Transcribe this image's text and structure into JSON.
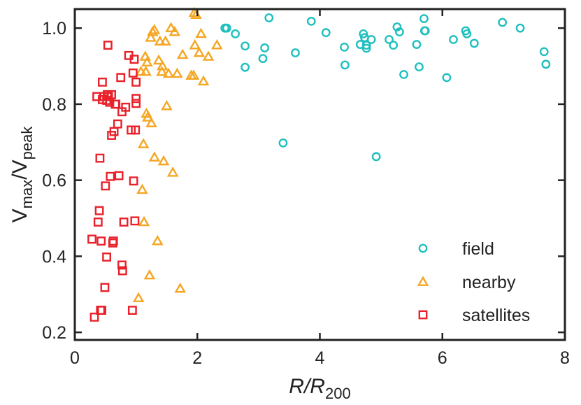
{
  "chart_data": {
    "type": "scatter",
    "title": "",
    "xlabel": {
      "main": "R/R",
      "sub": "200"
    },
    "ylabel": {
      "main1": "V",
      "sub1": "max",
      "slash": "/",
      "main2": "V",
      "sub2": "peak"
    },
    "xlim": [
      0,
      8
    ],
    "ylim": [
      0.18,
      1.05
    ],
    "xticks": [
      0,
      2,
      4,
      6,
      8
    ],
    "xtick_labels": [
      "0",
      "2",
      "4",
      "6",
      "8"
    ],
    "yticks": [
      0.2,
      0.4,
      0.6,
      0.8,
      1.0
    ],
    "ytick_labels": [
      "0.2",
      "0.4",
      "0.6",
      "0.8",
      "1.0"
    ],
    "legend_position": "lower-right",
    "series": [
      {
        "name": "field",
        "marker": "circle",
        "color": "#1fbfbf",
        "x": [
          2.45,
          2.48,
          2.62,
          2.78,
          2.78,
          3.07,
          3.1,
          3.17,
          3.4,
          3.6,
          3.86,
          4.1,
          4.4,
          4.41,
          4.66,
          4.71,
          4.73,
          4.76,
          4.76,
          4.84,
          4.92,
          5.13,
          5.2,
          5.26,
          5.3,
          5.37,
          5.58,
          5.62,
          5.7,
          5.71,
          5.72,
          6.07,
          6.18,
          6.38,
          6.4,
          6.52,
          6.98,
          7.27,
          7.66,
          7.69
        ],
        "y": [
          1.0,
          1.0,
          0.985,
          0.953,
          0.897,
          0.92,
          0.948,
          1.027,
          0.698,
          0.935,
          1.018,
          0.988,
          0.95,
          0.903,
          0.957,
          0.985,
          0.975,
          0.947,
          0.955,
          0.97,
          0.662,
          0.97,
          0.955,
          1.003,
          0.99,
          0.878,
          0.957,
          0.898,
          1.025,
          0.993,
          0.993,
          0.87,
          0.97,
          0.993,
          0.985,
          0.96,
          1.015,
          1.0,
          0.938,
          0.905
        ]
      },
      {
        "name": "nearby",
        "marker": "triangle",
        "color": "#f5a623",
        "x": [
          1.04,
          1.08,
          1.1,
          1.12,
          1.13,
          1.15,
          1.16,
          1.17,
          1.18,
          1.19,
          1.22,
          1.24,
          1.25,
          1.27,
          1.3,
          1.3,
          1.35,
          1.37,
          1.39,
          1.42,
          1.43,
          1.45,
          1.48,
          1.5,
          1.53,
          1.57,
          1.6,
          1.63,
          1.67,
          1.72,
          1.76,
          1.9,
          1.94,
          1.96,
          1.98,
          2.03,
          2.06,
          2.1,
          2.18,
          2.32,
          1.95
        ],
        "y": [
          0.29,
          0.885,
          0.575,
          0.695,
          0.49,
          0.925,
          0.885,
          0.775,
          0.91,
          0.765,
          0.35,
          0.975,
          0.75,
          0.99,
          0.66,
          0.995,
          0.44,
          0.915,
          0.965,
          0.885,
          0.9,
          0.65,
          0.965,
          0.795,
          0.88,
          1.0,
          0.62,
          0.99,
          0.88,
          0.315,
          0.93,
          0.875,
          0.875,
          0.955,
          1.035,
          0.935,
          0.985,
          0.86,
          0.925,
          0.955,
          1.04
        ]
      },
      {
        "name": "satellites",
        "marker": "square",
        "color": "#e8212a",
        "x": [
          0.28,
          0.32,
          0.36,
          0.38,
          0.4,
          0.41,
          0.42,
          0.43,
          0.44,
          0.45,
          0.47,
          0.49,
          0.5,
          0.52,
          0.53,
          0.54,
          0.57,
          0.58,
          0.6,
          0.6,
          0.62,
          0.63,
          0.64,
          0.67,
          0.7,
          0.72,
          0.75,
          0.77,
          0.77,
          0.78,
          0.8,
          0.83,
          0.88,
          0.92,
          0.94,
          0.95,
          0.96,
          0.97,
          0.98,
          0.99,
          1.0,
          1.0,
          1.0,
          0.52,
          0.55,
          0.45,
          0.66
        ],
        "y": [
          0.445,
          0.24,
          0.82,
          0.49,
          0.52,
          0.658,
          0.258,
          0.44,
          0.258,
          0.858,
          0.82,
          0.318,
          0.585,
          0.398,
          0.825,
          0.955,
          0.805,
          0.61,
          0.718,
          0.825,
          0.435,
          0.44,
          0.728,
          0.8,
          0.748,
          0.612,
          0.87,
          0.78,
          0.377,
          0.362,
          0.49,
          0.792,
          0.928,
          0.732,
          0.258,
          0.882,
          0.598,
          0.918,
          0.493,
          0.732,
          0.858,
          0.815,
          0.802,
          0.81,
          0.82,
          0.812,
          0.8
        ]
      }
    ]
  }
}
